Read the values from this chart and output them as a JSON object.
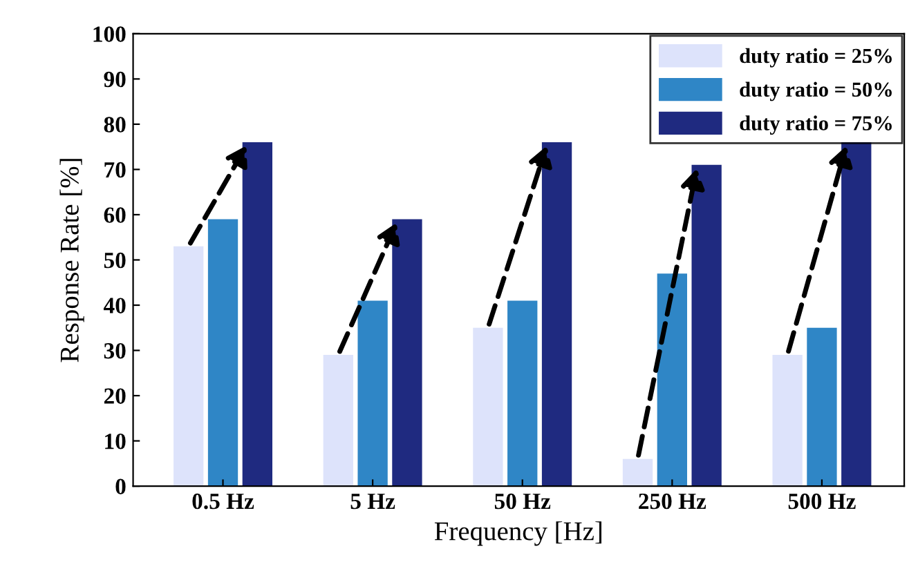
{
  "chart_data": {
    "type": "bar",
    "xlabel": "Frequency [Hz]",
    "ylabel": "Response Rate [%]",
    "categories": [
      "0.5 Hz",
      "5 Hz",
      "50 Hz",
      "250 Hz",
      "500 Hz"
    ],
    "series": [
      {
        "name": "duty ratio = 25%",
        "color": "#dde3fb",
        "values": [
          53,
          29,
          35,
          6,
          29
        ]
      },
      {
        "name": "duty ratio = 50%",
        "color": "#2f86c6",
        "values": [
          59,
          41,
          41,
          47,
          35
        ]
      },
      {
        "name": "duty ratio = 75%",
        "color": "#1f2a80",
        "values": [
          76,
          59,
          76,
          71,
          76
        ]
      }
    ],
    "ylim": [
      0,
      100
    ],
    "yticks": [
      0,
      10,
      20,
      30,
      40,
      50,
      60,
      70,
      80,
      90,
      100
    ],
    "grid": false,
    "legend": "top right"
  }
}
